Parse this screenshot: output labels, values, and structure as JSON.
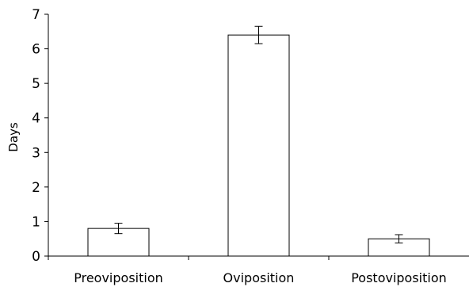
{
  "chart_data": {
    "type": "bar",
    "title": "",
    "xlabel": "",
    "ylabel": "Days",
    "ylim": [
      0,
      7
    ],
    "yticks": [
      "0",
      "1",
      "2",
      "3",
      "4",
      "5",
      "6",
      "7"
    ],
    "grid": false,
    "legend": "none",
    "categories": [
      "Preoviposition",
      "Oviposition",
      "Postoviposition"
    ],
    "values": [
      0.8,
      6.4,
      0.5
    ],
    "error": [
      0.15,
      0.25,
      0.12
    ],
    "colors": {
      "bar_fill": "#ffffff",
      "bar_stroke": "#000000",
      "axis": "#000000"
    }
  }
}
